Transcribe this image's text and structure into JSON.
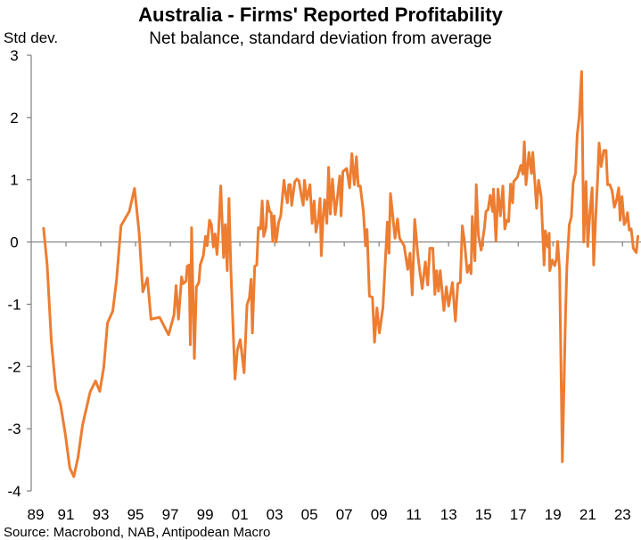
{
  "chart_data": {
    "type": "line",
    "title": "Australia - Firms' Reported Profitability",
    "subtitle": "Net balance, standard deviation from average",
    "ylabel": "Std dev.",
    "xlabel": "",
    "source": "Source: Macrobond, NAB, Antipodean Macro",
    "ylim": [
      -4,
      3
    ],
    "xlim": [
      1989,
      2024
    ],
    "yticks": [
      "3",
      "2",
      "1",
      "0",
      "-1",
      "-2",
      "-3",
      "-4"
    ],
    "ytick_values": [
      3,
      2,
      1,
      0,
      -1,
      -2,
      -3,
      -4
    ],
    "xticks": [
      "89",
      "91",
      "93",
      "95",
      "97",
      "99",
      "01",
      "03",
      "05",
      "07",
      "09",
      "11",
      "13",
      "15",
      "17",
      "19",
      "21",
      "23"
    ],
    "xtick_values": [
      1989,
      1991,
      1993,
      1995,
      1997,
      1999,
      2001,
      2003,
      2005,
      2007,
      2009,
      2011,
      2013,
      2015,
      2017,
      2019,
      2021,
      2023
    ],
    "grid": false,
    "legend": "none",
    "series": [
      {
        "name": "Firms' reported profitability",
        "color": "#ED7D31",
        "x": [
          1989.71,
          1989.92,
          1990.16,
          1990.42,
          1990.68,
          1990.96,
          1991.22,
          1991.45,
          1991.69,
          1991.95,
          1992.39,
          1992.7,
          1992.94,
          1993.17,
          1993.39,
          1993.69,
          1993.9,
          1994.16,
          1994.64,
          1994.94,
          1995.2,
          1995.42,
          1995.68,
          1995.89,
          1996.38,
          1996.9,
          1997.21,
          1997.33,
          1997.47,
          1997.65,
          1997.73,
          1997.9,
          1997.97,
          1998.08,
          1998.15,
          1998.22,
          1998.38,
          1998.5,
          1998.64,
          1998.72,
          1998.9,
          1999.02,
          1999.12,
          1999.25,
          1999.36,
          1999.47,
          1999.57,
          1999.68,
          1999.78,
          1999.9,
          2000.06,
          2000.16,
          2000.27,
          2000.37,
          2000.48,
          2000.72,
          2000.85,
          2001.02,
          2001.24,
          2001.41,
          2001.55,
          2001.64,
          2001.72,
          2001.85,
          2001.97,
          2002.06,
          2002.19,
          2002.28,
          2002.37,
          2002.5,
          2002.59,
          2002.71,
          2002.8,
          2002.89,
          2002.97,
          2003.08,
          2003.23,
          2003.35,
          2003.53,
          2003.63,
          2003.73,
          2003.81,
          2003.9,
          2003.98,
          2004.16,
          2004.28,
          2004.4,
          2004.54,
          2004.64,
          2004.71,
          2004.85,
          2005.03,
          2005.15,
          2005.27,
          2005.37,
          2005.5,
          2005.61,
          2005.68,
          2005.78,
          2005.87,
          2006.0,
          2006.1,
          2006.2,
          2006.32,
          2006.48,
          2006.62,
          2006.74,
          2006.82,
          2006.92,
          2007.14,
          2007.31,
          2007.44,
          2007.58,
          2007.7,
          2007.8,
          2007.92,
          2008.1,
          2008.22,
          2008.31,
          2008.45,
          2008.62,
          2008.74,
          2008.88,
          2009.02,
          2009.22,
          2009.48,
          2009.57,
          2009.66,
          2009.92,
          2010.06,
          2010.18,
          2010.44,
          2010.65,
          2010.78,
          2010.91,
          2011.05,
          2011.22,
          2011.34,
          2011.48,
          2011.66,
          2011.8,
          2011.92,
          2012.09,
          2012.21,
          2012.31,
          2012.42,
          2012.52,
          2012.73,
          2012.87,
          2013.0,
          2013.22,
          2013.39,
          2013.53,
          2013.67,
          2013.79,
          2013.91,
          2014.07,
          2014.21,
          2014.29,
          2014.36,
          2014.51,
          2014.59,
          2014.71,
          2014.87,
          2015.06,
          2015.15,
          2015.27,
          2015.39,
          2015.53,
          2015.58,
          2015.72,
          2015.84,
          2015.98,
          2016.12,
          2016.23,
          2016.35,
          2016.45,
          2016.56,
          2016.68,
          2016.74,
          2016.95,
          2017.15,
          2017.27,
          2017.35,
          2017.45,
          2017.62,
          2017.76,
          2017.84,
          2017.95,
          2018.06,
          2018.17,
          2018.32,
          2018.49,
          2018.56,
          2018.7,
          2018.78,
          2018.82,
          2018.96,
          2019.1,
          2019.2,
          2019.27,
          2019.38,
          2019.54,
          2019.72,
          2019.8,
          2019.94,
          2020.06,
          2020.16,
          2020.3,
          2020.39,
          2020.51,
          2020.65,
          2020.77,
          2020.9,
          2021.0,
          2021.13,
          2021.25,
          2021.34,
          2021.46,
          2021.56,
          2021.65,
          2021.77,
          2021.85,
          2021.92,
          2022.05,
          2022.14,
          2022.27,
          2022.4,
          2022.53,
          2022.66,
          2022.78,
          2022.86,
          2022.97,
          2023.1,
          2023.19,
          2023.29,
          2023.39,
          2023.5,
          2023.62,
          2023.79,
          2023.88
        ],
        "values": [
          0.22,
          -0.37,
          -1.6,
          -2.37,
          -2.6,
          -3.08,
          -3.63,
          -3.77,
          -3.46,
          -2.94,
          -2.41,
          -2.23,
          -2.4,
          -2.01,
          -1.3,
          -1.11,
          -0.63,
          0.26,
          0.49,
          0.86,
          0.16,
          -0.8,
          -0.58,
          -1.24,
          -1.21,
          -1.49,
          -1.17,
          -0.7,
          -1.24,
          -0.56,
          -0.67,
          -0.63,
          -0.39,
          -0.37,
          -1.65,
          0.23,
          -1.87,
          -0.72,
          -0.65,
          -0.37,
          -0.22,
          0.09,
          -0.06,
          0.35,
          0.28,
          -0.08,
          0.13,
          -0.2,
          0.2,
          0.9,
          -0.25,
          0.28,
          -0.46,
          0.7,
          -0.46,
          -2.2,
          -1.74,
          -1.57,
          -2.1,
          -1.01,
          -0.89,
          -0.6,
          -1.46,
          -0.39,
          -0.37,
          0.23,
          0.21,
          0.66,
          0.09,
          0.23,
          0.66,
          0.49,
          0.47,
          0.01,
          0.42,
          0.0,
          0.32,
          0.42,
          0.99,
          0.78,
          0.63,
          0.92,
          0.92,
          0.59,
          0.97,
          1.01,
          0.98,
          0.73,
          0.59,
          0.99,
          0.68,
          0.92,
          0.3,
          0.66,
          0.16,
          0.35,
          0.7,
          -0.22,
          0.4,
          0.68,
          0.3,
          1.2,
          0.45,
          1.01,
          0.44,
          0.75,
          1.06,
          0.42,
          1.13,
          1.18,
          0.87,
          1.42,
          0.92,
          1.37,
          0.9,
          0.9,
          0.49,
          -0.06,
          0.2,
          -0.87,
          -0.89,
          -1.61,
          -1.06,
          -1.46,
          -1.06,
          0.32,
          -0.18,
          0.78,
          0.06,
          0.37,
          0.06,
          -0.06,
          -0.44,
          -0.18,
          -0.85,
          0.36,
          -0.18,
          -0.46,
          -0.75,
          -0.32,
          -0.69,
          -0.1,
          -0.1,
          -0.84,
          -0.46,
          -0.79,
          -0.46,
          -1.1,
          -0.72,
          -1.03,
          -0.65,
          -1.27,
          -0.67,
          -0.65,
          0.26,
          0.01,
          -0.49,
          -0.37,
          -0.51,
          0.41,
          -0.3,
          0.92,
          0.11,
          -0.13,
          0.23,
          0.49,
          0.52,
          0.75,
          0.49,
          0.85,
          0.02,
          0.85,
          0.42,
          0.9,
          0.21,
          0.35,
          0.33,
          0.93,
          0.63,
          0.97,
          1.04,
          1.23,
          1.09,
          1.61,
          0.92,
          1.44,
          1.1,
          1.44,
          0.99,
          0.54,
          0.99,
          0.73,
          -0.37,
          0.18,
          -0.08,
          0.14,
          -0.46,
          -0.29,
          -0.38,
          -0.27,
          0.01,
          -0.46,
          -3.53,
          -1.18,
          -0.39,
          0.28,
          0.4,
          0.95,
          1.11,
          1.71,
          2.01,
          2.74,
          0.0,
          0.97,
          -0.07,
          0.49,
          0.87,
          -0.37,
          0.4,
          0.97,
          1.59,
          1.21,
          1.35,
          1.47,
          1.47,
          0.92,
          0.92,
          0.82,
          0.56,
          0.68,
          0.87,
          0.35,
          0.73,
          0.28,
          0.33,
          0.47,
          0.19,
          0.21,
          -0.1,
          -0.17,
          0.09
        ]
      }
    ]
  }
}
